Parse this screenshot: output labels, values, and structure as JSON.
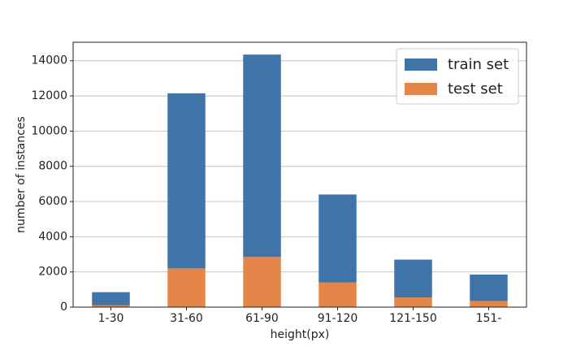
{
  "chart_data": {
    "type": "stacked_bar",
    "x_label": "height(px)",
    "y_label": "number of instances",
    "categories": [
      "1-30",
      "31-60",
      "61-90",
      "91-120",
      "121-150",
      "151-"
    ],
    "series": [
      {
        "name": "train set",
        "color": "#3f74a8",
        "values": [
          750,
          9950,
          11500,
          5000,
          2150,
          1500
        ]
      },
      {
        "name": "test set",
        "color": "#e6854a",
        "values": [
          100,
          2200,
          2850,
          1400,
          550,
          350
        ]
      }
    ],
    "ylim": [
      0,
      15050
    ],
    "yticks": [
      0,
      2000,
      4000,
      6000,
      8000,
      10000,
      12000,
      14000
    ],
    "grid": true,
    "legend": "upper right"
  }
}
